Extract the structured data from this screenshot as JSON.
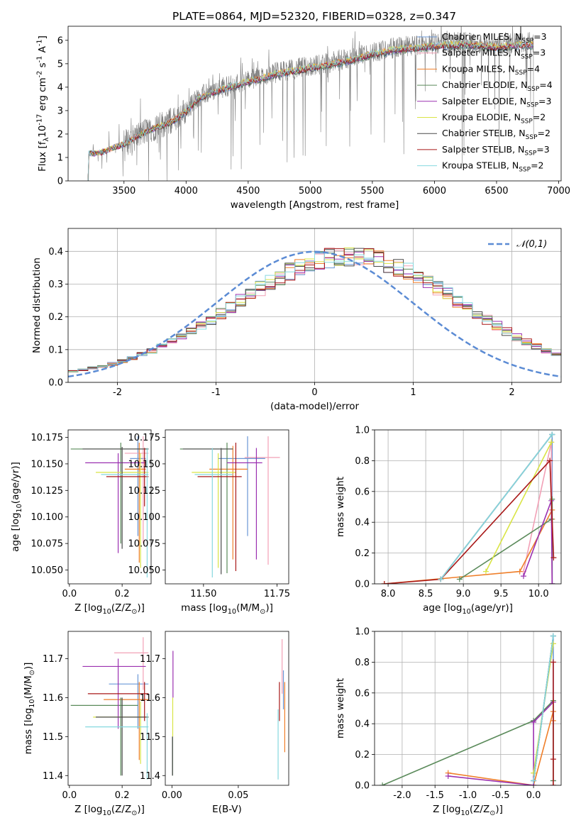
{
  "figure": {
    "title": "PLATE=0864, MJD=52320, FIBERID=0328, z=0.347"
  },
  "series_names": [
    "Chabrier MILES, N$_{SSP}$=3",
    "Salpeter MILES, N$_{SSP}$=3",
    "Kroupa MILES, N$_{SSP}$=4",
    "Chabrier ELODIE, N$_{SSP}$=4",
    "Salpeter ELODIE, N$_{SSP}$=3",
    "Kroupa ELODIE, N$_{SSP}$=2",
    "Chabrier STELIB, N$_{SSP}$=2",
    "Salpeter STELIB, N$_{SSP}$=3",
    "Kroupa STELIB, N$_{SSP}$=2"
  ],
  "series_colors": [
    "#6a97d6",
    "#f2a0b6",
    "#ef7f2a",
    "#5a8a5a",
    "#9b30b0",
    "#d9e445",
    "#4a4a4a",
    "#a81818",
    "#86d8df"
  ],
  "chart_data": [
    {
      "id": "spectrum",
      "type": "line",
      "xlabel": "wavelength [Angstrom, rest frame]",
      "ylabel": "Flux [f$_\\lambda$10$^{-17}$ erg cm$^{-2}$ s$^{-1}$ A$^{-1}$]",
      "xlim": [
        3050,
        7020
      ],
      "ylim": [
        0,
        6.6
      ],
      "xticks": [
        3500,
        4000,
        4500,
        5000,
        5500,
        6000,
        6500,
        7000
      ],
      "yticks": [
        0,
        1,
        2,
        3,
        4,
        5,
        6
      ],
      "legend": "top-right",
      "data_continuum_x": [
        3210,
        3300,
        3500,
        3700,
        3900,
        4000,
        4100,
        4300,
        4500,
        4700,
        4900,
        5100,
        5300,
        5500,
        5700,
        5900,
        6100,
        6300,
        6500,
        6700,
        6800
      ],
      "data_continuum_y": [
        1.2,
        1.2,
        1.6,
        2.2,
        2.6,
        3.0,
        3.6,
        4.0,
        4.3,
        4.6,
        4.8,
        5.0,
        5.2,
        5.5,
        5.7,
        5.8,
        5.9,
        5.9,
        5.8,
        5.9,
        5.9
      ]
    },
    {
      "id": "residuals",
      "type": "line",
      "xlabel": "(data-model)/error",
      "ylabel": "Normed distribution",
      "xlim": [
        -2.5,
        2.5
      ],
      "ylim": [
        0,
        0.47
      ],
      "xticks": [
        -2,
        -1,
        0,
        1,
        2
      ],
      "yticks": [
        0.0,
        0.1,
        0.2,
        0.3,
        0.4
      ],
      "legend": "top-right",
      "gaussian_label": "$\\mathcal{N}(0,1)$",
      "bin_width": 0.1,
      "bin_start": -2.5
    },
    {
      "id": "age-vs-Z",
      "type": "scatter",
      "xlabel": "Z [log$_{10}$(Z/Z$_\\odot$)]",
      "ylabel": "age  [log$_{10}$(age/yr)]",
      "xlim": [
        -0.005,
        0.31
      ],
      "ylim": [
        10.037,
        10.182
      ],
      "xticks": [
        0.0,
        0.2
      ],
      "yticks": [
        10.05,
        10.075,
        10.1,
        10.125,
        10.15,
        10.175
      ],
      "points": [
        {
          "x": 0.26,
          "xerr": [
            0.23,
            0.29
          ],
          "y": 10.155,
          "yerr": [
            10.082,
            10.176
          ]
        },
        {
          "x": 0.28,
          "xerr": [
            0.21,
            0.3
          ],
          "y": 10.16,
          "yerr": [
            10.075,
            10.176
          ]
        },
        {
          "x": 0.265,
          "xerr": [
            0.21,
            0.29
          ],
          "y": 10.145,
          "yerr": [
            10.057,
            10.17
          ]
        },
        {
          "x": 0.195,
          "xerr": [
            0.005,
            0.3
          ],
          "y": 10.164,
          "yerr": [
            10.075,
            10.17
          ]
        },
        {
          "x": 0.185,
          "xerr": [
            0.06,
            0.29
          ],
          "y": 10.151,
          "yerr": [
            10.066,
            10.16
          ]
        },
        {
          "x": 0.27,
          "xerr": [
            0.1,
            0.3
          ],
          "y": 10.142,
          "yerr": [
            10.052,
            10.16
          ]
        },
        {
          "x": 0.2,
          "xerr": [
            0.05,
            0.3
          ],
          "y": 10.164,
          "yerr": [
            10.07,
            10.166
          ]
        },
        {
          "x": 0.285,
          "xerr": [
            0.14,
            0.3
          ],
          "y": 10.138,
          "yerr": [
            10.11,
            10.165
          ]
        },
        {
          "x": 0.295,
          "xerr": [
            0.12,
            0.3
          ],
          "y": 10.14,
          "yerr": [
            10.043,
            10.165
          ]
        }
      ]
    },
    {
      "id": "age-vs-mass",
      "type": "scatter",
      "xlabel": "mass [log$_{10}$(M/M$_\\odot$)]",
      "ylabel": "",
      "xlim": [
        11.37,
        11.79
      ],
      "ylim": [
        10.037,
        10.182
      ],
      "xticks": [
        11.5,
        11.75
      ],
      "yticks": [
        10.05,
        10.075,
        10.1,
        10.125,
        10.15,
        10.175
      ],
      "points": [
        {
          "x": 11.65,
          "xerr": [
            11.55,
            11.71
          ],
          "y": 10.155,
          "yerr": [
            10.082,
            10.176
          ]
        },
        {
          "x": 11.72,
          "xerr": [
            11.64,
            11.76
          ],
          "y": 10.156,
          "yerr": [
            10.055,
            10.176
          ]
        },
        {
          "x": 11.6,
          "xerr": [
            11.52,
            11.65
          ],
          "y": 10.145,
          "yerr": [
            10.06,
            10.167
          ]
        },
        {
          "x": 11.58,
          "xerr": [
            11.42,
            11.6
          ],
          "y": 10.164,
          "yerr": [
            10.047,
            10.17
          ]
        },
        {
          "x": 11.68,
          "xerr": [
            11.58,
            11.7
          ],
          "y": 10.151,
          "yerr": [
            10.06,
            10.165
          ]
        },
        {
          "x": 11.55,
          "xerr": [
            11.46,
            11.61
          ],
          "y": 10.142,
          "yerr": [
            10.052,
            10.16
          ]
        },
        {
          "x": 11.56,
          "xerr": [
            11.43,
            11.6
          ],
          "y": 10.164,
          "yerr": [
            10.046,
            10.165
          ]
        },
        {
          "x": 11.61,
          "xerr": [
            11.48,
            11.63
          ],
          "y": 10.138,
          "yerr": [
            10.049,
            10.17
          ]
        },
        {
          "x": 11.53,
          "xerr": [
            11.47,
            11.6
          ],
          "y": 10.14,
          "yerr": [
            10.043,
            10.165
          ]
        }
      ]
    },
    {
      "id": "weight-vs-age",
      "type": "line",
      "xlabel": "age  [log$_{10}$(age/yr)]",
      "ylabel": "mass weight",
      "xlim": [
        7.82,
        10.3
      ],
      "ylim": [
        0,
        1.0
      ],
      "xticks": [
        8.0,
        8.5,
        9.0,
        9.5,
        10.0
      ],
      "yticks": [
        0.0,
        0.2,
        0.4,
        0.6,
        0.8,
        1.0
      ],
      "series": [
        {
          "x": [
            8.7,
            10.18,
            10.18
          ],
          "y": [
            0.03,
            0.97,
            0.0
          ]
        },
        {
          "x": [
            9.8,
            10.17,
            10.18
          ],
          "y": [
            0.08,
            0.92,
            0.0
          ]
        },
        {
          "x": [
            7.95,
            9.75,
            10.18,
            10.18
          ],
          "y": [
            0.0,
            0.08,
            0.48,
            0.42
          ]
        },
        {
          "x": [
            8.95,
            10.17,
            10.18,
            10.18
          ],
          "y": [
            0.03,
            0.42,
            0.55,
            0.0
          ]
        },
        {
          "x": [
            9.8,
            10.17,
            10.18
          ],
          "y": [
            0.05,
            0.54,
            0.0
          ]
        },
        {
          "x": [
            9.3,
            10.17
          ],
          "y": [
            0.08,
            0.92
          ]
        },
        {
          "x": [
            8.7,
            10.18
          ],
          "y": [
            0.03,
            0.97
          ]
        },
        {
          "x": [
            7.95,
            8.7,
            10.15,
            10.2
          ],
          "y": [
            0.0,
            0.03,
            0.8,
            0.17
          ]
        },
        {
          "x": [
            8.7,
            10.18
          ],
          "y": [
            0.03,
            0.97
          ]
        }
      ]
    },
    {
      "id": "mass-vs-Z",
      "type": "scatter",
      "xlabel": "Z [log$_{10}$(Z/Z$_\\odot$)]",
      "ylabel": "mass [log$_{10}$(M/M$_\\odot$)]",
      "xlim": [
        -0.005,
        0.31
      ],
      "ylim": [
        11.375,
        11.77
      ],
      "xticks": [
        0.0,
        0.2
      ],
      "yticks": [
        11.4,
        11.5,
        11.6,
        11.7
      ],
      "points": [
        {
          "x": 0.26,
          "xerr": [
            0.15,
            0.3
          ],
          "y": 11.635,
          "yerr": [
            11.52,
            11.66
          ]
        },
        {
          "x": 0.28,
          "xerr": [
            0.17,
            0.3
          ],
          "y": 11.715,
          "yerr": [
            11.62,
            11.755
          ]
        },
        {
          "x": 0.265,
          "xerr": [
            0.13,
            0.3
          ],
          "y": 11.595,
          "yerr": [
            11.44,
            11.64
          ]
        },
        {
          "x": 0.195,
          "xerr": [
            0.005,
            0.26
          ],
          "y": 11.58,
          "yerr": [
            11.4,
            11.6
          ]
        },
        {
          "x": 0.185,
          "xerr": [
            0.05,
            0.29
          ],
          "y": 11.68,
          "yerr": [
            11.52,
            11.7
          ]
        },
        {
          "x": 0.27,
          "xerr": [
            0.09,
            0.3
          ],
          "y": 11.55,
          "yerr": [
            11.43,
            11.59
          ]
        },
        {
          "x": 0.2,
          "xerr": [
            0.1,
            0.3
          ],
          "y": 11.55,
          "yerr": [
            11.4,
            11.6
          ]
        },
        {
          "x": 0.285,
          "xerr": [
            0.07,
            0.3
          ],
          "y": 11.61,
          "yerr": [
            11.54,
            11.64
          ]
        },
        {
          "x": 0.295,
          "xerr": [
            0.06,
            0.3
          ],
          "y": 11.525,
          "yerr": [
            11.39,
            11.56
          ]
        }
      ]
    },
    {
      "id": "mass-vs-EBV",
      "type": "scatter",
      "xlabel": "E(B-V)",
      "ylabel": "",
      "xlim": [
        -0.005,
        0.088
      ],
      "ylim": [
        11.375,
        11.77
      ],
      "xticks": [
        0.0,
        0.05
      ],
      "yticks": [
        11.4,
        11.5,
        11.6,
        11.7
      ],
      "points": [
        {
          "x": 0.084,
          "y": 11.62,
          "yerr": [
            11.57,
            11.67
          ]
        },
        {
          "x": 0.083,
          "y": 11.68,
          "yerr": [
            11.61,
            11.75
          ]
        },
        {
          "x": 0.085,
          "y": 11.59,
          "yerr": [
            11.46,
            11.64
          ]
        },
        {
          "x": 0.0005,
          "y": 11.44,
          "yerr": [
            11.4,
            11.5
          ]
        },
        {
          "x": 0.0008,
          "y": 11.66,
          "yerr": [
            11.6,
            11.72
          ]
        },
        {
          "x": 0.0006,
          "y": 11.55,
          "yerr": [
            11.5,
            11.6
          ]
        },
        {
          "x": 0.0004,
          "y": 11.44,
          "yerr": [
            11.4,
            11.5
          ]
        },
        {
          "x": 0.081,
          "y": 11.6,
          "yerr": [
            11.54,
            11.64
          ]
        },
        {
          "x": 0.08,
          "y": 11.48,
          "yerr": [
            11.39,
            11.57
          ]
        }
      ]
    },
    {
      "id": "weight-vs-Z",
      "type": "line",
      "xlabel": "Z [log$_{10}$(Z/Z$_\\odot$)]",
      "ylabel": "mass weight",
      "xlim": [
        -2.42,
        0.42
      ],
      "ylim": [
        0,
        1.0
      ],
      "xticks": [
        -2.0,
        -1.5,
        -1.0,
        -0.5,
        0.0
      ],
      "yticks": [
        0.0,
        0.2,
        0.4,
        0.6,
        0.8,
        1.0
      ],
      "series": [
        {
          "x": [
            0.0,
            0.3,
            0.3
          ],
          "y": [
            0.03,
            0.97,
            0.03
          ]
        },
        {
          "x": [
            0.0,
            0.3
          ],
          "y": [
            0.08,
            0.92
          ]
        },
        {
          "x": [
            -1.3,
            0.0,
            0.3,
            0.3
          ],
          "y": [
            0.08,
            0.0,
            0.48,
            0.42
          ]
        },
        {
          "x": [
            -2.3,
            0.0,
            0.3,
            0.3
          ],
          "y": [
            0.0,
            0.42,
            0.55,
            0.03
          ]
        },
        {
          "x": [
            -1.3,
            0.0,
            0.0,
            0.3
          ],
          "y": [
            0.06,
            0.0,
            0.41,
            0.54
          ]
        },
        {
          "x": [
            0.0,
            0.3
          ],
          "y": [
            0.08,
            0.92
          ]
        },
        {
          "x": [
            0.0,
            0.3
          ],
          "y": [
            0.03,
            0.97
          ]
        },
        {
          "x": [
            0.3,
            0.3,
            0.3
          ],
          "y": [
            0.0,
            0.8,
            0.17
          ]
        },
        {
          "x": [
            0.0,
            0.3
          ],
          "y": [
            0.03,
            0.97
          ]
        }
      ]
    }
  ]
}
